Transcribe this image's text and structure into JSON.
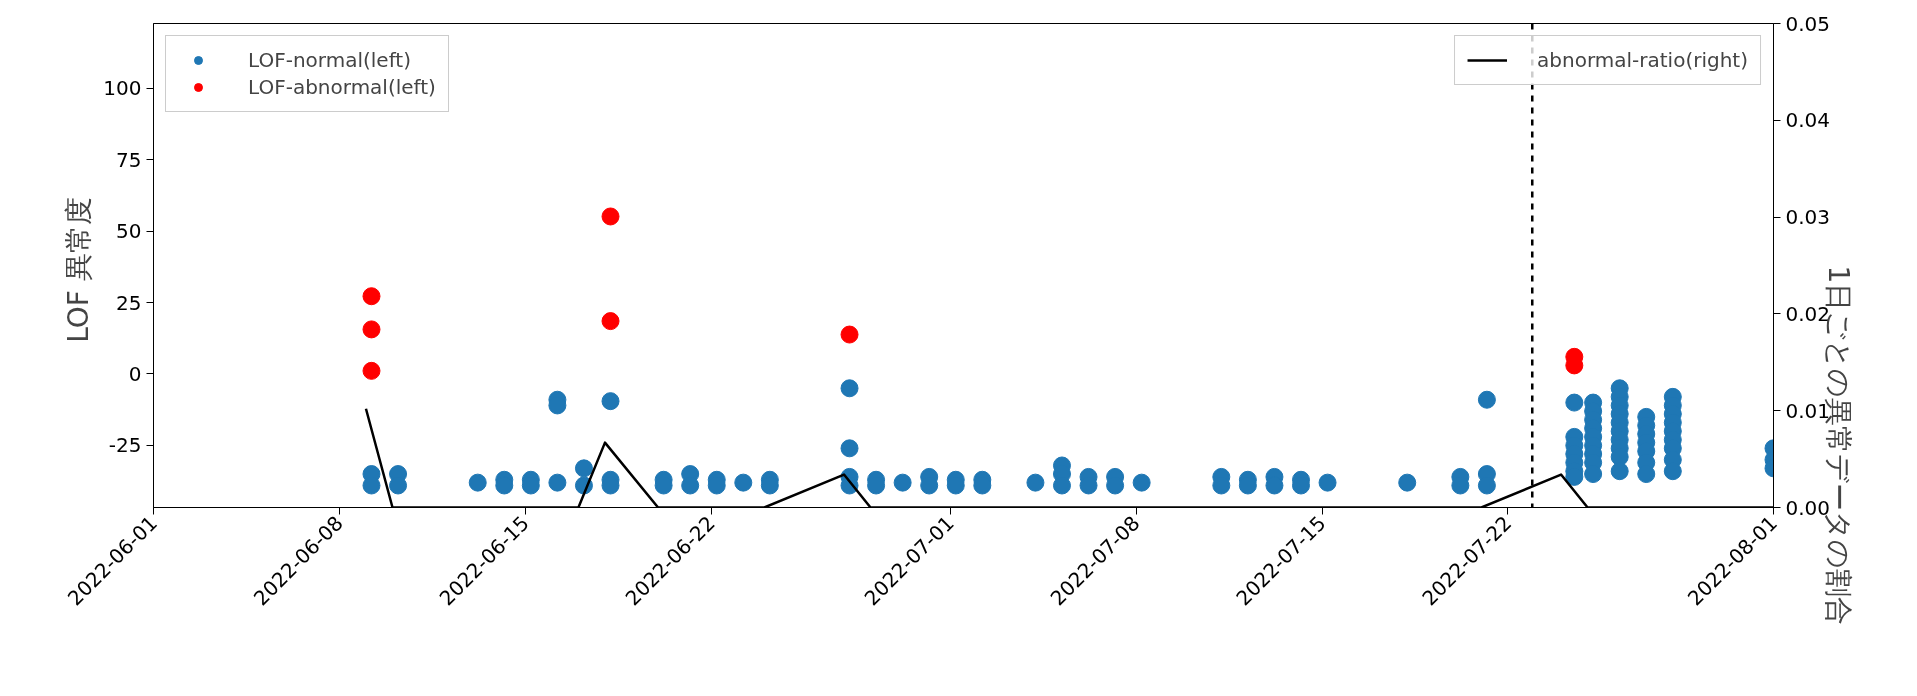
{
  "chart_data": {
    "type": "scatter",
    "ylabel": "LOF  異常度",
    "y2label": "1日ごとの異常データの割合",
    "xlim": [
      "2022-06-01",
      "2022-08-01"
    ],
    "xticks": [
      {
        "value": "2022-06-01",
        "label": "2022-06-01"
      },
      {
        "value": "2022-06-08",
        "label": "2022-06-08"
      },
      {
        "value": "2022-06-15",
        "label": "2022-06-15"
      },
      {
        "value": "2022-06-22",
        "label": "2022-06-22"
      },
      {
        "value": "2022-07-01",
        "label": "2022-07-01"
      },
      {
        "value": "2022-07-08",
        "label": "2022-07-08"
      },
      {
        "value": "2022-07-15",
        "label": "2022-07-15"
      },
      {
        "value": "2022-07-22",
        "label": "2022-07-22"
      },
      {
        "value": "2022-08-01",
        "label": "2022-08-01"
      }
    ],
    "ylim": [
      -46.7,
      122.6
    ],
    "yticks": [
      -25,
      0,
      25,
      50,
      75,
      100
    ],
    "y2lim": [
      0,
      0.05
    ],
    "y2ticks": [
      {
        "value": 0,
        "label": "0.00"
      },
      {
        "value": 0.01,
        "label": "0.01"
      },
      {
        "value": 0.02,
        "label": "0.02"
      },
      {
        "value": 0.03,
        "label": "0.03"
      },
      {
        "value": 0.04,
        "label": "0.04"
      },
      {
        "value": 0.05,
        "label": "0.05"
      }
    ],
    "legend": "top left",
    "ref_lines": [
      {
        "axis": "x",
        "value": "2022-07-22T22:00",
        "color": "#000000",
        "line_style": "dashed"
      }
    ],
    "series": [
      {
        "name": "LOF-normal(left)",
        "marker": "circle",
        "color": "#1f77b4",
        "x": [
          "2022-06-09T05:00",
          "2022-06-09T05:00",
          "2022-06-10T05:00",
          "2022-06-10T05:00",
          "2022-06-13T05:00",
          "2022-06-14T05:00",
          "2022-06-14T05:00",
          "2022-06-15T05:00",
          "2022-06-15T05:00",
          "2022-06-16T05:00",
          "2022-06-16T05:00",
          "2022-06-16T05:00",
          "2022-06-17T05:00",
          "2022-06-17T05:00",
          "2022-06-18T05:00",
          "2022-06-18T05:00",
          "2022-06-18T05:00",
          "2022-06-20T05:00",
          "2022-06-20T05:00",
          "2022-06-21T05:00",
          "2022-06-21T05:00",
          "2022-06-22T05:00",
          "2022-06-22T05:00",
          "2022-06-23T05:00",
          "2022-06-24T05:00",
          "2022-06-24T05:00",
          "2022-06-27T05:00",
          "2022-06-27T05:00",
          "2022-06-27T05:00",
          "2022-06-27T05:00",
          "2022-06-28T05:00",
          "2022-06-28T05:00",
          "2022-06-29T05:00",
          "2022-06-30T05:00",
          "2022-06-30T05:00",
          "2022-07-01T05:00",
          "2022-07-01T05:00",
          "2022-07-02T05:00",
          "2022-07-02T05:00",
          "2022-07-04T05:00",
          "2022-07-05T05:00",
          "2022-07-05T05:00",
          "2022-07-05T05:00",
          "2022-07-06T05:00",
          "2022-07-06T05:00",
          "2022-07-07T05:00",
          "2022-07-07T05:00",
          "2022-07-08T05:00",
          "2022-07-11T05:00",
          "2022-07-11T05:00",
          "2022-07-12T05:00",
          "2022-07-12T05:00",
          "2022-07-13T05:00",
          "2022-07-13T05:00",
          "2022-07-14T05:00",
          "2022-07-14T05:00",
          "2022-07-15T05:00",
          "2022-07-18T05:00",
          "2022-07-20T05:00",
          "2022-07-20T05:00",
          "2022-07-21T05:00",
          "2022-07-21T05:00",
          "2022-07-21T05:00",
          "2022-07-24T12:00",
          "2022-07-24T12:00",
          "2022-07-24T12:00",
          "2022-07-24T12:00",
          "2022-07-24T12:00",
          "2022-07-24T12:00",
          "2022-07-24T12:00",
          "2022-07-25T05:00",
          "2022-07-25T05:00",
          "2022-07-25T05:00",
          "2022-07-25T05:00",
          "2022-07-25T05:00",
          "2022-07-25T05:00",
          "2022-07-25T05:00",
          "2022-07-25T05:00",
          "2022-07-25T05:00",
          "2022-07-26T05:00",
          "2022-07-26T05:00",
          "2022-07-26T05:00",
          "2022-07-26T05:00",
          "2022-07-26T05:00",
          "2022-07-26T05:00",
          "2022-07-26T05:00",
          "2022-07-26T05:00",
          "2022-07-26T05:00",
          "2022-07-26T05:00",
          "2022-07-27T05:00",
          "2022-07-27T05:00",
          "2022-07-27T05:00",
          "2022-07-27T05:00",
          "2022-07-27T05:00",
          "2022-07-27T05:00",
          "2022-07-27T05:00",
          "2022-07-28T05:00",
          "2022-07-28T05:00",
          "2022-07-28T05:00",
          "2022-07-28T05:00",
          "2022-07-28T05:00",
          "2022-07-28T05:00",
          "2022-07-28T05:00",
          "2022-07-28T05:00",
          "2022-07-28T05:00",
          "2022-08-01",
          "2022-08-01",
          "2022-08-01"
        ],
        "values": [
          -35,
          -39,
          -35,
          -39,
          -38,
          -37,
          -39,
          -37,
          -39,
          -9,
          -11,
          -38,
          -33,
          -39,
          -9.5,
          -37,
          -39,
          -37,
          -39,
          -35,
          -39,
          -37,
          -39,
          -38,
          -37,
          -39,
          -5,
          -26,
          -36,
          -39,
          -37,
          -39,
          -38,
          -36,
          -39,
          -37,
          -39,
          -37,
          -39,
          -38,
          -32,
          -35,
          -39,
          -36,
          -39,
          -36,
          -39,
          -38,
          -36,
          -39,
          -37,
          -39,
          -36,
          -39,
          -37,
          -39,
          -38,
          -38,
          -36,
          -39,
          -9,
          -35,
          -39,
          -10,
          -22,
          -25,
          -28,
          -31,
          -34,
          -36,
          -10,
          -13,
          -16,
          -19,
          -22,
          -25,
          -28,
          -31,
          -35,
          -5,
          -8,
          -11,
          -14,
          -17,
          -20,
          -23,
          -26,
          -29,
          -34,
          -15,
          -18,
          -21,
          -24,
          -27,
          -31,
          -35,
          -8,
          -11,
          -14,
          -17,
          -20,
          -23,
          -26,
          -30,
          -34,
          -26,
          -30,
          -33
        ]
      },
      {
        "name": "LOF-abnormal(left)",
        "marker": "circle",
        "color": "#ff0000",
        "x": [
          "2022-06-09T05:00",
          "2022-06-09T05:00",
          "2022-06-09T05:00",
          "2022-06-18T05:00",
          "2022-06-18T05:00",
          "2022-06-27T05:00",
          "2022-07-24T12:00",
          "2022-07-24T12:00"
        ],
        "values": [
          27.2,
          15.6,
          1.1,
          55.1,
          18.5,
          13.8,
          6,
          3
        ]
      },
      {
        "name": "abnormal-ratio(right)",
        "type": "line",
        "axis": "y2",
        "color": "#000000",
        "marker": "none",
        "x": [
          "2022-06-09",
          "2022-06-10",
          "2022-06-13",
          "2022-06-14",
          "2022-06-15",
          "2022-06-16",
          "2022-06-17",
          "2022-06-18",
          "2022-06-20",
          "2022-06-21",
          "2022-06-22",
          "2022-06-23",
          "2022-06-24",
          "2022-06-27",
          "2022-06-28",
          "2022-06-29",
          "2022-06-30",
          "2022-07-01",
          "2022-07-02",
          "2022-07-04",
          "2022-07-05",
          "2022-07-06",
          "2022-07-07",
          "2022-07-08",
          "2022-07-11",
          "2022-07-12",
          "2022-07-13",
          "2022-07-14",
          "2022-07-15",
          "2022-07-18",
          "2022-07-20",
          "2022-07-21",
          "2022-07-24",
          "2022-07-25",
          "2022-07-26",
          "2022-07-27",
          "2022-07-28",
          "2022-08-01"
        ],
        "values": [
          0.0102,
          0,
          0,
          0,
          0,
          0,
          0,
          0.0067,
          0,
          0,
          0,
          0,
          0,
          0.0034,
          0,
          0,
          0,
          0,
          0,
          0,
          0,
          0,
          0,
          0,
          0,
          0,
          0,
          0,
          0,
          0,
          0,
          0,
          0.0034,
          0,
          0,
          0,
          0,
          0
        ]
      }
    ]
  }
}
